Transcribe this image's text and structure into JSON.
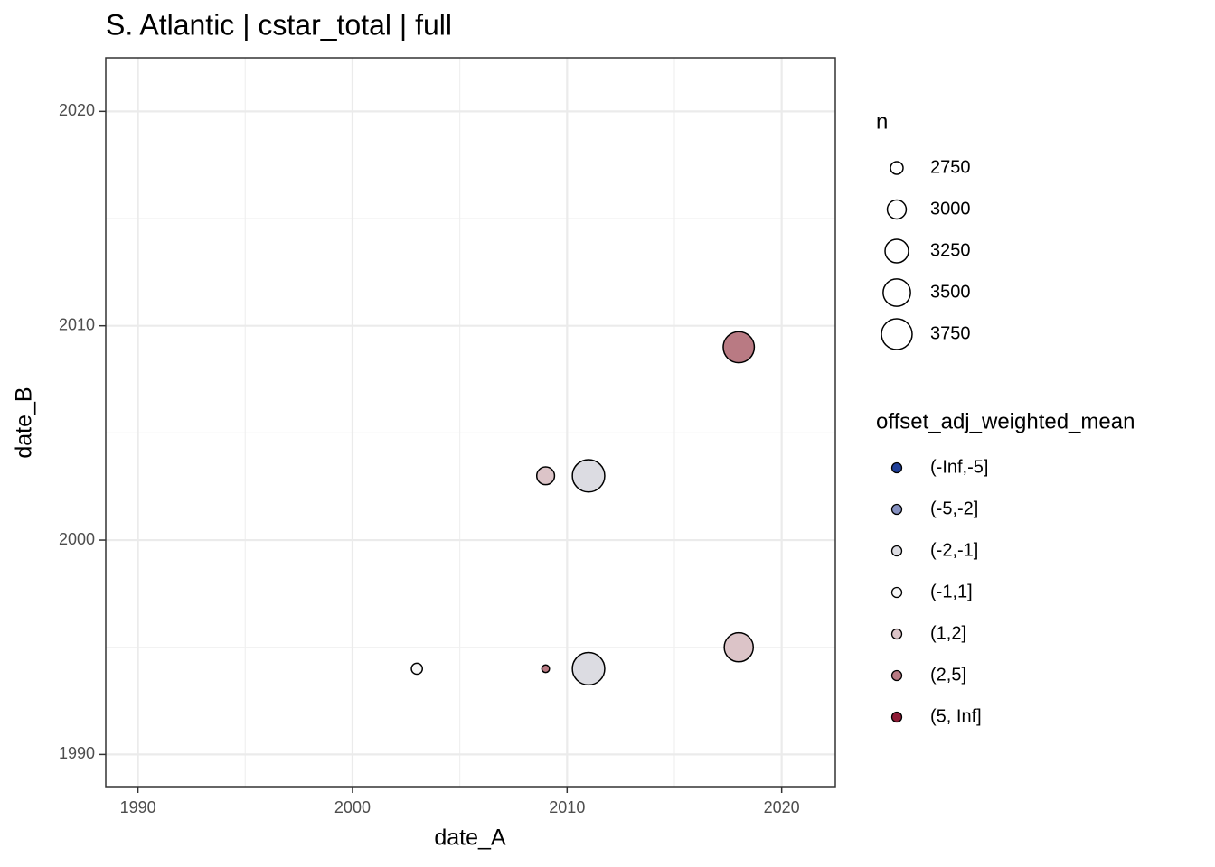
{
  "chart_data": {
    "type": "bubble",
    "title": "S. Atlantic | cstar_total | full",
    "x_label": "date_A",
    "y_label": "date_B",
    "xlim": [
      1988.5,
      2022.5
    ],
    "ylim": [
      1988.5,
      2022.5
    ],
    "xticks": [
      1990,
      2000,
      2010,
      2020
    ],
    "yticks": [
      1990,
      2000,
      2010,
      2020
    ],
    "grid": true,
    "size_legend": {
      "title": "n",
      "values": [
        2750,
        3000,
        3250,
        3500,
        3750
      ]
    },
    "color_legend_title": "offset_adj_weighted_mean",
    "series": [
      {
        "name": "(-Inf,-5]",
        "color": "#1f3f99",
        "x": [],
        "y": [],
        "n": []
      },
      {
        "name": "(-5,-2]",
        "color": "#8590c0",
        "x": [],
        "y": [],
        "n": []
      },
      {
        "name": "(-2,-1]",
        "color": "#dcdce2",
        "x": [
          2011,
          2011
        ],
        "y": [
          2003,
          1994
        ],
        "n": [
          3880,
          3880
        ]
      },
      {
        "name": "(-1,1]",
        "color": "#f7f7f7",
        "x": [
          2003
        ],
        "y": [
          1994
        ],
        "n": [
          2700
        ]
      },
      {
        "name": "(1,2]",
        "color": "#dcc4c8",
        "x": [
          2009,
          2018
        ],
        "y": [
          2003,
          1995
        ],
        "n": [
          2950,
          3620
        ]
      },
      {
        "name": "(2,5]",
        "color": "#b97a83",
        "x": [
          2018,
          2009
        ],
        "y": [
          2009,
          1994
        ],
        "n": [
          3780,
          2620
        ]
      },
      {
        "name": "(5, Inf]",
        "color": "#8e1b35",
        "x": [],
        "y": [],
        "n": []
      }
    ]
  }
}
